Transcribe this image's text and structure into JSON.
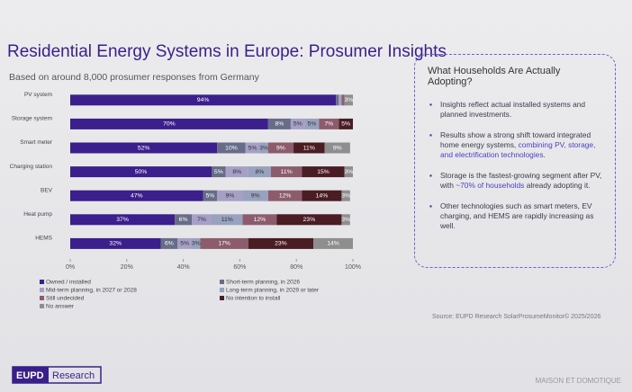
{
  "chart_data": {
    "type": "stacked-bar-horizontal",
    "title": "Residential Energy Systems in Europe: Prosumer Insights",
    "subtitle": "Based on around 8,000 prosumer responses from Germany",
    "categories": [
      "PV system",
      "Storage system",
      "Smart meter",
      "Charging station",
      "BEV",
      "Heat pump",
      "HEMS"
    ],
    "series": [
      {
        "name": "Owned / installed",
        "color": "#3b1f8c",
        "values": [
          94,
          70,
          52,
          50,
          47,
          37,
          32
        ]
      },
      {
        "name": "Short-term planning, in 2026",
        "color": "#676c88",
        "values": [
          1,
          8,
          10,
          5,
          5,
          6,
          6
        ]
      },
      {
        "name": "Mid-term planning, in 2027 or 2028",
        "color": "#a69fc6",
        "values": [
          1,
          5,
          5,
          8,
          9,
          7,
          5
        ]
      },
      {
        "name": "Long-term planning, in 2029 or later",
        "color": "#98a1be",
        "values": [
          0,
          5,
          3,
          8,
          9,
          11,
          3
        ]
      },
      {
        "name": "Still undecided",
        "color": "#8c5c6c",
        "values": [
          1,
          7,
          9,
          11,
          12,
          12,
          17
        ]
      },
      {
        "name": "No intention to install",
        "color": "#4a1c24",
        "values": [
          0,
          5,
          11,
          15,
          14,
          23,
          23
        ]
      },
      {
        "name": "No answer",
        "color": "#8e8e8e",
        "values": [
          3,
          0,
          9,
          3,
          3,
          3,
          14
        ]
      }
    ],
    "value_labels": [
      [
        "94%",
        "70%",
        "52%",
        "50%",
        "47%",
        "37%",
        "32%"
      ],
      [
        null,
        "8%",
        "10%",
        "5%",
        "5%",
        "6%",
        "6%"
      ],
      [
        null,
        "5%",
        "5%",
        "8%",
        "9%",
        "7%",
        "5%"
      ],
      [
        null,
        "5%",
        "3%",
        "8%",
        "9%",
        "11%",
        "3%"
      ],
      [
        null,
        "7%",
        "9%",
        "11%",
        "12%",
        "12%",
        "17%"
      ],
      [
        null,
        "5%",
        "11%",
        "15%",
        "14%",
        "23%",
        "23%"
      ],
      [
        "3%",
        null,
        "9%",
        "3%",
        "3%",
        "3%",
        "14%"
      ]
    ],
    "xlim": [
      0,
      100
    ],
    "xticks": [
      {
        "value": 0,
        "label": "0%"
      },
      {
        "value": 20,
        "label": "20%"
      },
      {
        "value": 40,
        "label": "40%"
      },
      {
        "value": 60,
        "label": "60%"
      },
      {
        "value": 80,
        "label": "80%"
      },
      {
        "value": 100,
        "label": "100%"
      }
    ],
    "panel": {
      "title": "What Households Are Actually Adopting?",
      "bullets": [
        [
          "Insights reflect actual installed systems and planned investments."
        ],
        [
          "Results show a strong shift toward integrated home energy systems, ",
          "combining PV, storage, and electrification technologies",
          "."
        ],
        [
          "Storage is the fastest-growing segment after PV, with ",
          "~70% of households",
          " already adopting it."
        ],
        [
          "Other technologies such as smart meters, EV charging, and HEMS are rapidly increasing as well."
        ]
      ]
    },
    "source": "Source: EUPD Research SolarProsumeMonitor© 2025/2026",
    "logo": [
      "EUPD",
      "Research"
    ],
    "watermark": "MAISON ET DOMOTIQUE"
  }
}
